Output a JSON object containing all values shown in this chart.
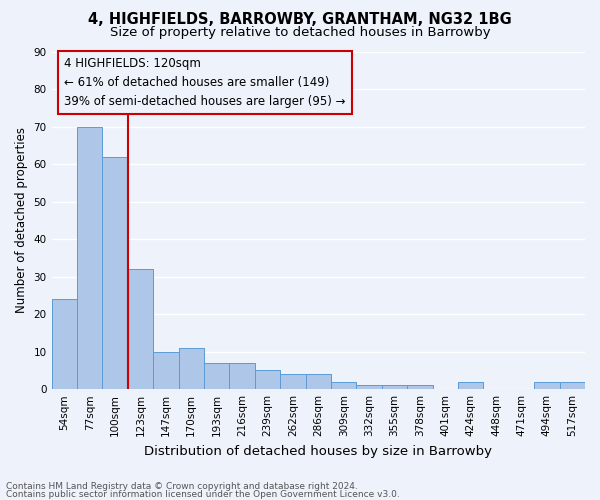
{
  "title1": "4, HIGHFIELDS, BARROWBY, GRANTHAM, NG32 1BG",
  "title2": "Size of property relative to detached houses in Barrowby",
  "xlabel": "Distribution of detached houses by size in Barrowby",
  "ylabel": "Number of detached properties",
  "footnote1": "Contains HM Land Registry data © Crown copyright and database right 2024.",
  "footnote2": "Contains public sector information licensed under the Open Government Licence v3.0.",
  "categories": [
    "54sqm",
    "77sqm",
    "100sqm",
    "123sqm",
    "147sqm",
    "170sqm",
    "193sqm",
    "216sqm",
    "239sqm",
    "262sqm",
    "286sqm",
    "309sqm",
    "332sqm",
    "355sqm",
    "378sqm",
    "401sqm",
    "424sqm",
    "448sqm",
    "471sqm",
    "494sqm",
    "517sqm"
  ],
  "values": [
    24,
    70,
    62,
    32,
    10,
    11,
    7,
    7,
    5,
    4,
    4,
    2,
    1,
    1,
    1,
    0,
    2,
    0,
    0,
    2,
    2
  ],
  "bar_color": "#aec6e8",
  "bar_edge_color": "#5b9bd5",
  "red_line_x": 2.5,
  "red_line_color": "#cc0000",
  "annotation_line1": "4 HIGHFIELDS: 120sqm",
  "annotation_line2": "← 61% of detached houses are smaller (149)",
  "annotation_line3": "39% of semi-detached houses are larger (95) →",
  "annotation_box_color": "#cc0000",
  "ylim": [
    0,
    90
  ],
  "yticks": [
    0,
    10,
    20,
    30,
    40,
    50,
    60,
    70,
    80,
    90
  ],
  "bg_color": "#eef2fb",
  "grid_color": "#ffffff",
  "title1_fontsize": 10.5,
  "title2_fontsize": 9.5,
  "tick_fontsize": 7.5,
  "ylabel_fontsize": 8.5,
  "xlabel_fontsize": 9.5,
  "annotation_fontsize": 8.5,
  "footnote_fontsize": 6.5
}
